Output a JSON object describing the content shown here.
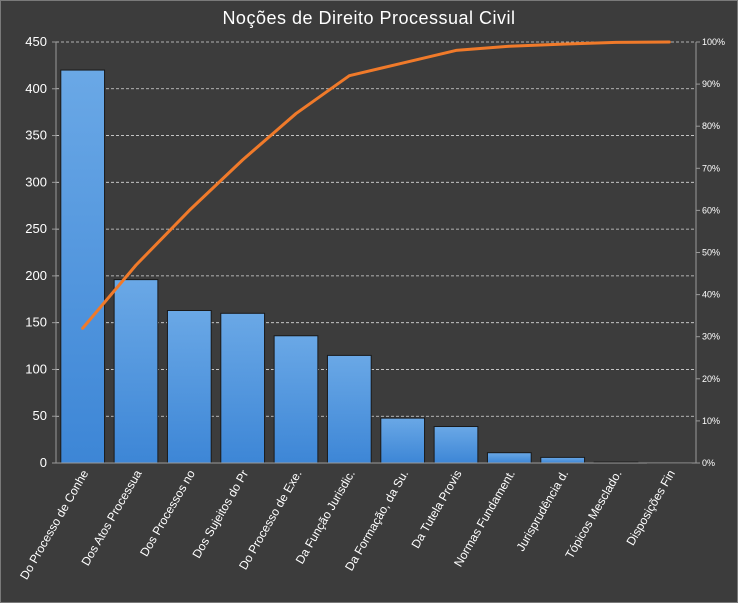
{
  "chart_data": {
    "type": "bar",
    "title": "Noções de Direito Processual Civil",
    "xlabel": "",
    "ylabel": "",
    "categories": [
      "Do Processo de Conhe",
      "Dos Atos Processua",
      "Dos Processos no",
      "Dos Sujeitos do Pr",
      "Do Processo de Exe.",
      "Da Função Jurisdic.",
      "Da Formação, da Su.",
      "Da Tutela Provis",
      "Normas Fundament.",
      "Jurisprudência d.",
      "Tópicos Mesclado.",
      "Disposições Fin"
    ],
    "series": [
      {
        "type": "bar",
        "axis": "left",
        "values": [
          420,
          196,
          163,
          160,
          136,
          115,
          48,
          39,
          11,
          6,
          1,
          0
        ]
      },
      {
        "type": "line",
        "axis": "right",
        "values": [
          32,
          47,
          60,
          72,
          83,
          92,
          95,
          98,
          99,
          99.5,
          99.9,
          100
        ]
      }
    ],
    "ylim": [
      0,
      450
    ],
    "yticks": [
      0,
      50,
      100,
      150,
      200,
      250,
      300,
      350,
      400,
      450
    ],
    "y2lim": [
      0,
      100
    ],
    "y2ticks": [
      "0%",
      "10%",
      "20%",
      "30%",
      "40%",
      "50%",
      "60%",
      "70%",
      "80%",
      "90%",
      "100%"
    ],
    "grid": true,
    "colors": {
      "bar": "#4a90d9",
      "line": "#f07a2a",
      "background": "#3c3c3c"
    }
  }
}
